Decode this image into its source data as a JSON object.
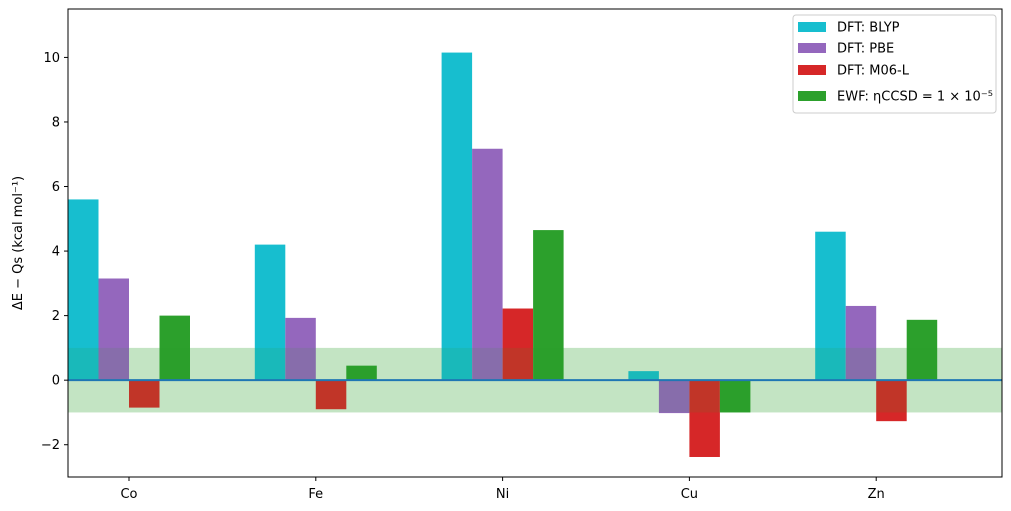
{
  "chart_data": {
    "type": "bar",
    "categories": [
      "Co",
      "Fe",
      "Ni",
      "Cu",
      "Zn"
    ],
    "series": [
      {
        "name": "DFT: BLYP",
        "color": "#17becf",
        "values": [
          5.6,
          4.2,
          10.15,
          0.28,
          4.6
        ]
      },
      {
        "name": "DFT: PBE",
        "color": "#9467bd",
        "values": [
          3.15,
          1.93,
          7.17,
          -1.02,
          2.3
        ]
      },
      {
        "name": "DFT: M06-L",
        "color": "#d62728",
        "values": [
          -0.85,
          -0.9,
          2.22,
          -2.38,
          -1.27
        ]
      },
      {
        "name": "EWF: ηCCSD = 1 × 10⁻⁵",
        "color": "#2ca02c",
        "values": [
          2.0,
          0.45,
          4.65,
          -1.0,
          1.87
        ]
      }
    ],
    "band": {
      "low": -1,
      "high": 1,
      "color": "#2ca02c"
    },
    "zero_line_color": "#1f77b4",
    "xlabel": "",
    "ylabel": "ΔE − Qs (kcal mol⁻¹)",
    "ylim": [
      -3.0,
      11.5
    ],
    "yticks": [
      -2,
      0,
      2,
      4,
      6,
      8,
      10
    ],
    "grid": false,
    "legend_position": "top-right"
  }
}
